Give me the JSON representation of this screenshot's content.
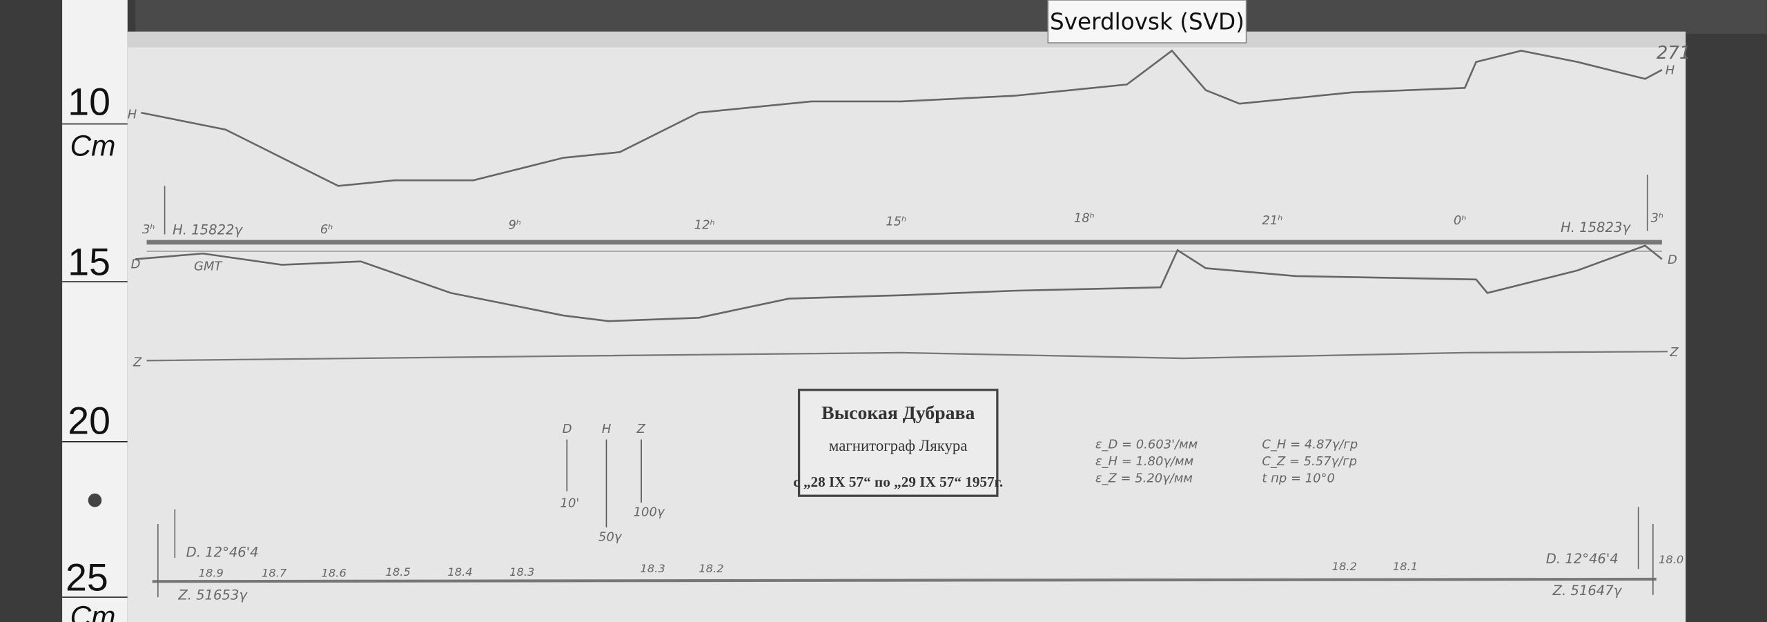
{
  "label": "Sverdlovsk (SVD)",
  "sheet_number": "271",
  "ruler": [
    "10",
    "Cm",
    "15",
    "20",
    "25",
    "Cm"
  ],
  "hours": [
    "3ʰ",
    "6ʰ",
    "9ʰ",
    "12ʰ",
    "15ʰ",
    "18ʰ",
    "21ʰ",
    "0ʰ",
    "3ʰ"
  ],
  "trace_labels": {
    "h_left": "H",
    "h_right": "H",
    "d_left": "D",
    "d_right": "D",
    "z_left": "Z",
    "z_right": "Z",
    "gmt": "GMT"
  },
  "baselines": {
    "h_start": "H. 15822γ",
    "h_end": "H. 15823γ",
    "d_start": "D. 12°46'4",
    "z_start": "Z. 51653γ",
    "d_end": "D. 12°46'4",
    "z_end": "Z. 51647γ"
  },
  "scale_bars": {
    "labels": [
      "D",
      "H",
      "Z"
    ],
    "values": [
      "10'",
      "50γ",
      "100γ"
    ]
  },
  "stamp": {
    "station": "Высокая Дубрава",
    "instrument": "магнитограф Лякура",
    "dates": "с „28 IX 57“ по „29 IX 57“ 1957г."
  },
  "constants": [
    "ε_D = 0.603'/мм",
    "ε_H = 1.80γ/мм",
    "ε_Z = 5.20γ/мм",
    "C_H = 4.87γ/гр",
    "C_Z = 5.57γ/гр",
    "t пр = 10°0"
  ],
  "temperatures": [
    "18.9",
    "18.7",
    "18.6",
    "18.5",
    "18.4",
    "18.3",
    "18.3",
    "18.2",
    "18.2",
    "18.1",
    "18.0"
  ]
}
